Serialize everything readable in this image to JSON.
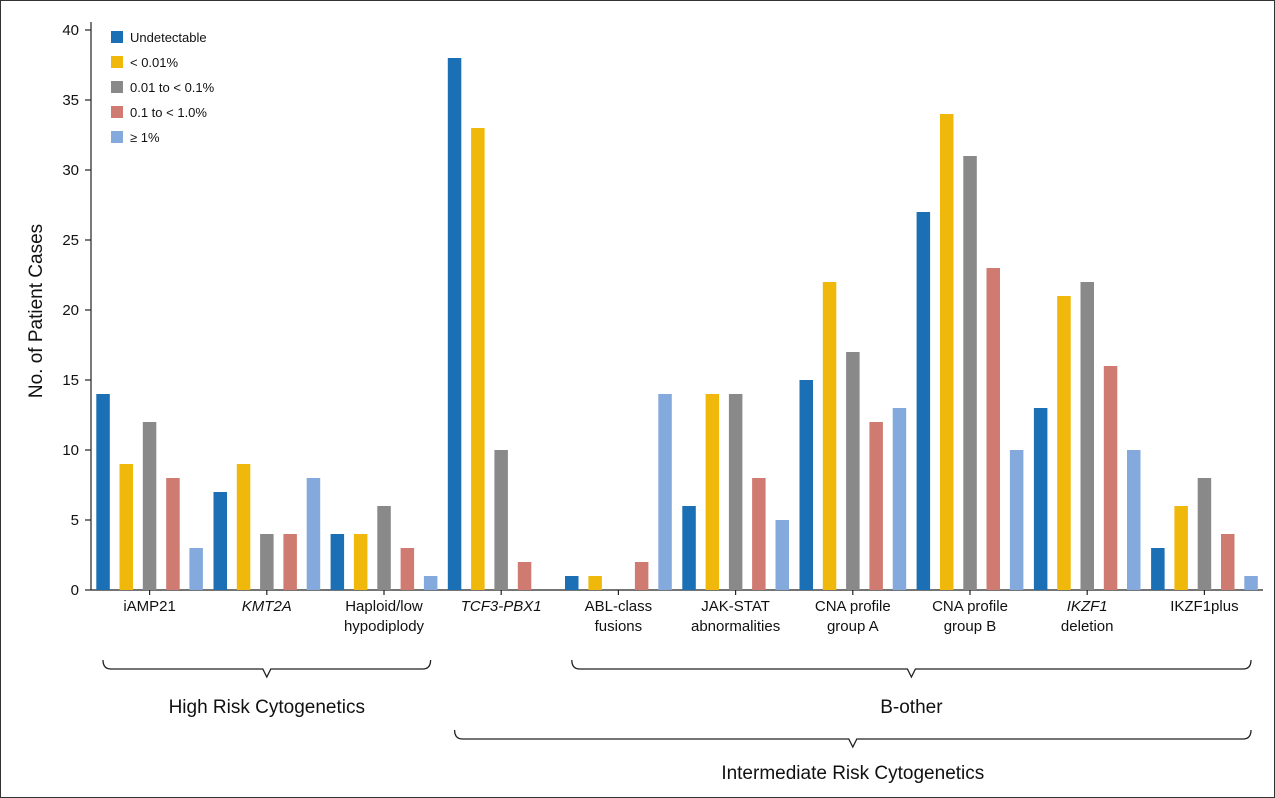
{
  "chart_data": {
    "type": "bar",
    "ylabel": "No. of Patient Cases",
    "ylim": [
      0,
      40
    ],
    "yticks": [
      0,
      5,
      10,
      15,
      20,
      25,
      30,
      35,
      40
    ],
    "grid": false,
    "legend_position": "top-left",
    "categories": [
      {
        "lines": [
          "iAMP21"
        ],
        "italic": false
      },
      {
        "lines": [
          "KMT2A"
        ],
        "italic": true
      },
      {
        "lines": [
          "Haploid/low",
          "hypodiplody"
        ],
        "italic": false
      },
      {
        "lines": [
          "TCF3-PBX1"
        ],
        "italic": true
      },
      {
        "lines": [
          "ABL-class",
          "fusions"
        ],
        "italic": false
      },
      {
        "lines": [
          "JAK-STAT",
          "abnormalities"
        ],
        "italic": false
      },
      {
        "lines": [
          "CNA profile",
          "group A"
        ],
        "italic": false
      },
      {
        "lines": [
          "CNA profile",
          "group B"
        ],
        "italic": false
      },
      {
        "lines": [
          "IKZF1",
          "deletion"
        ],
        "italic": true,
        "italic_lines": [
          0
        ]
      },
      {
        "lines": [
          "IKZF1plus"
        ],
        "italic": false
      }
    ],
    "series": [
      {
        "name": "Undetectable",
        "color": "#1a6fb5",
        "values": [
          14,
          7,
          4,
          38,
          1,
          6,
          15,
          27,
          13,
          3
        ]
      },
      {
        "name": "< 0.01%",
        "color": "#f0b80a",
        "values": [
          9,
          9,
          4,
          33,
          1,
          14,
          22,
          34,
          21,
          6
        ]
      },
      {
        "name": "0.01 to < 0.1%",
        "color": "#898989",
        "values": [
          12,
          4,
          6,
          10,
          0,
          14,
          17,
          31,
          22,
          8
        ]
      },
      {
        "name": "0.1 to < 1.0%",
        "color": "#cf7b71",
        "values": [
          8,
          4,
          3,
          2,
          2,
          8,
          12,
          23,
          16,
          4
        ]
      },
      {
        "name": "≥ 1%",
        "color": "#84a9dc",
        "values": [
          3,
          8,
          1,
          0,
          14,
          5,
          13,
          10,
          10,
          1
        ]
      }
    ],
    "groups": [
      {
        "label": "High Risk Cytogenetics",
        "from": 0,
        "to": 2,
        "level": 1
      },
      {
        "label": "B-other",
        "from": 4,
        "to": 9,
        "level": 1
      },
      {
        "label": "Intermediate Risk Cytogenetics",
        "from": 3,
        "to": 9,
        "level": 2
      }
    ]
  }
}
